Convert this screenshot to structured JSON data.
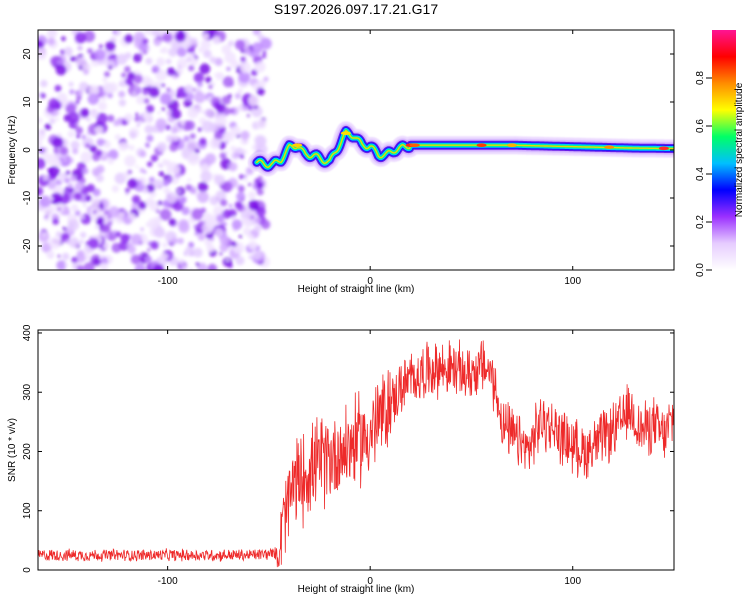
{
  "title": "S197.2026.097.17.21.G17",
  "chart_data": [
    {
      "type": "heatmap",
      "xlabel": "Height of straight line (km)",
      "ylabel": "Frequency (Hz)",
      "xlim": [
        -164,
        150
      ],
      "ylim": [
        -25,
        25
      ],
      "xticks": [
        -100,
        0,
        100
      ],
      "yticks": [
        -20,
        -10,
        0,
        10,
        20
      ],
      "noise_region_x": [
        -164,
        -54
      ],
      "signal_ridge": [
        [
          -56,
          -2.5
        ],
        [
          -52,
          -3
        ],
        [
          -48,
          -3
        ],
        [
          -44,
          -2
        ],
        [
          -40,
          0.5
        ],
        [
          -36,
          1.0
        ],
        [
          -32,
          -1.0
        ],
        [
          -28,
          -1.0
        ],
        [
          -24,
          -2.0
        ],
        [
          -20,
          -2.5
        ],
        [
          -16,
          0.5
        ],
        [
          -12,
          3.5
        ],
        [
          -8,
          3.0
        ],
        [
          -4,
          1.0
        ],
        [
          0,
          0.8
        ],
        [
          4,
          -1.0
        ],
        [
          8,
          -1.0
        ],
        [
          12,
          0.0
        ],
        [
          16,
          0.5
        ],
        [
          20,
          1.0
        ],
        [
          30,
          1.0
        ],
        [
          50,
          1.0
        ],
        [
          70,
          1.0
        ],
        [
          90,
          0.8
        ],
        [
          110,
          0.6
        ],
        [
          130,
          0.4
        ],
        [
          150,
          0.3
        ]
      ],
      "colorbar": {
        "label": "Normalized spectral amplitude",
        "range": [
          0,
          1
        ],
        "ticks": [
          "0.0",
          "0.2",
          "0.4",
          "0.6",
          "0.8"
        ],
        "colors": [
          "#ffffff",
          "#e6ccff",
          "#9b30ff",
          "#0000ff",
          "#00bfff",
          "#00ff66",
          "#ffff00",
          "#ff8c00",
          "#ff0000",
          "#ff1493"
        ]
      }
    },
    {
      "type": "line",
      "xlabel": "Height of straight line (km)",
      "ylabel": "SNR (10 * v/v)",
      "xlim": [
        -164,
        150
      ],
      "ylim": [
        0,
        405
      ],
      "xticks": [
        -100,
        0,
        100
      ],
      "yticks": [
        0,
        100,
        200,
        300,
        400
      ],
      "color": "#ee2a2a",
      "trend": [
        [
          -164,
          25
        ],
        [
          -120,
          25
        ],
        [
          -60,
          25
        ],
        [
          -46,
          28
        ],
        [
          -42,
          90
        ],
        [
          -38,
          140
        ],
        [
          -30,
          170
        ],
        [
          -20,
          190
        ],
        [
          -10,
          210
        ],
        [
          0,
          230
        ],
        [
          8,
          270
        ],
        [
          16,
          310
        ],
        [
          24,
          330
        ],
        [
          30,
          340
        ],
        [
          40,
          340
        ],
        [
          48,
          330
        ],
        [
          56,
          345
        ],
        [
          60,
          330
        ],
        [
          66,
          240
        ],
        [
          72,
          220
        ],
        [
          78,
          200
        ],
        [
          84,
          250
        ],
        [
          90,
          240
        ],
        [
          100,
          210
        ],
        [
          106,
          200
        ],
        [
          114,
          220
        ],
        [
          122,
          240
        ],
        [
          128,
          270
        ],
        [
          134,
          235
        ],
        [
          140,
          245
        ],
        [
          145,
          225
        ],
        [
          150,
          260
        ]
      ]
    }
  ]
}
